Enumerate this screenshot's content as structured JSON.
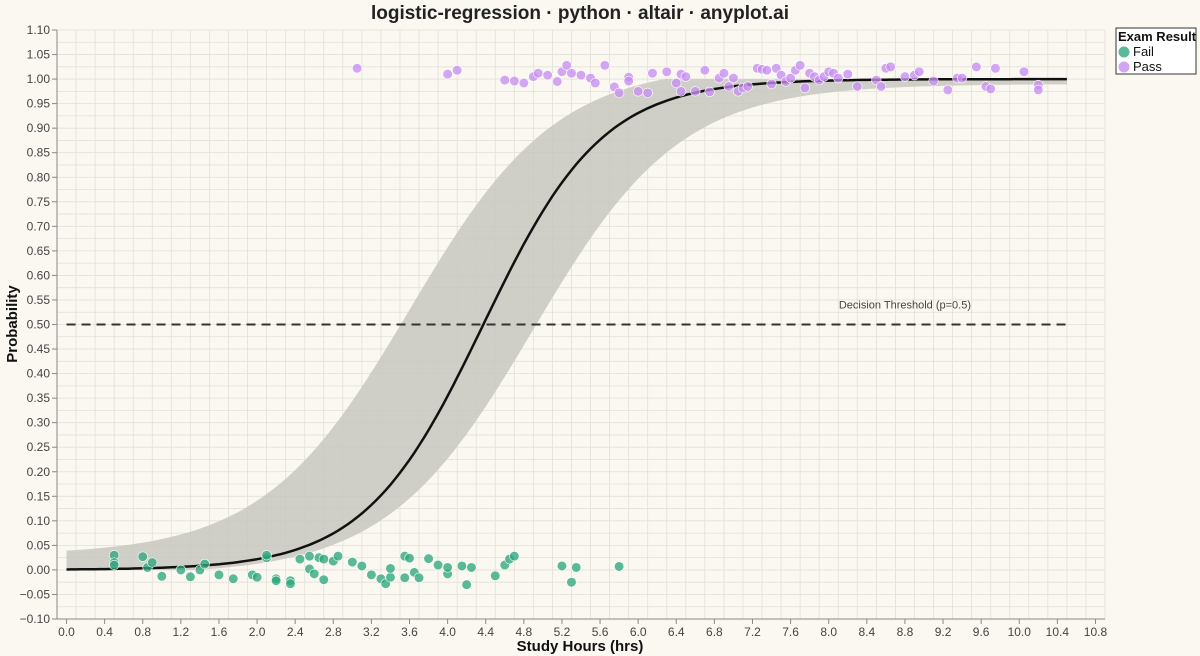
{
  "colors": {
    "background": "#FAF8F1",
    "grid": "#E2E0D8",
    "fail": "#2FA77E",
    "pass": "#C78EF0",
    "curve": "#111111",
    "band": "#C8C8C0"
  },
  "chart_data": {
    "type": "scatter",
    "title": "logistic-regression · python · altair · anyplot.ai",
    "xlabel": "Study Hours (hrs)",
    "ylabel": "Probability",
    "xlim": [
      -0.1,
      10.9
    ],
    "ylim": [
      -0.1,
      1.1
    ],
    "x_ticks": [
      "0.0",
      "0.4",
      "0.8",
      "1.2",
      "1.6",
      "2.0",
      "2.4",
      "2.8",
      "3.2",
      "3.6",
      "4.0",
      "4.4",
      "4.8",
      "5.2",
      "5.6",
      "6.0",
      "6.4",
      "6.8",
      "7.2",
      "7.6",
      "8.0",
      "8.4",
      "8.8",
      "9.2",
      "9.6",
      "10.0",
      "10.4",
      "10.8"
    ],
    "y_ticks": [
      "−0.10",
      "−0.05",
      "0.00",
      "0.05",
      "0.10",
      "0.15",
      "0.20",
      "0.25",
      "0.30",
      "0.35",
      "0.40",
      "0.45",
      "0.50",
      "0.55",
      "0.60",
      "0.65",
      "0.70",
      "0.75",
      "0.80",
      "0.85",
      "0.90",
      "0.95",
      "1.00",
      "1.05",
      "1.10"
    ],
    "grid": true,
    "legend": {
      "title": "Exam Result",
      "placement": "top-right",
      "entries": [
        {
          "label": "Fail",
          "color": "#2FA77E"
        },
        {
          "label": "Pass",
          "color": "#C78EF0"
        }
      ]
    },
    "threshold": {
      "y": 0.5,
      "label": "Decision Threshold (p=0.5)",
      "label_x": 8.8
    },
    "curve": {
      "intercept": -7.0,
      "slope": 1.6,
      "x_range": [
        0,
        10.5
      ]
    },
    "band": {
      "xlow": 0.0,
      "xhigh": 10.5,
      "k_upper": 1.3,
      "x0_upper": 3.6,
      "k_lower": 1.3,
      "x0_lower": 4.9,
      "upper_cap": 1.0,
      "lower_floor": 0.0
    },
    "series": [
      {
        "name": "Fail",
        "points": [
          [
            0.5,
            0.03
          ],
          [
            0.5,
            0.015
          ],
          [
            0.5,
            0.01
          ],
          [
            0.8,
            0.027
          ],
          [
            0.85,
            0.005
          ],
          [
            0.9,
            0.015
          ],
          [
            1.0,
            -0.013
          ],
          [
            1.2,
            0.0
          ],
          [
            1.3,
            -0.014
          ],
          [
            1.4,
            0.0
          ],
          [
            1.45,
            0.012
          ],
          [
            1.6,
            -0.01
          ],
          [
            1.75,
            -0.018
          ],
          [
            1.95,
            -0.01
          ],
          [
            2.0,
            -0.015
          ],
          [
            2.1,
            0.025
          ],
          [
            2.1,
            0.03
          ],
          [
            2.2,
            -0.018
          ],
          [
            2.2,
            -0.022
          ],
          [
            2.35,
            -0.022
          ],
          [
            2.35,
            -0.028
          ],
          [
            2.45,
            0.022
          ],
          [
            2.55,
            0.028
          ],
          [
            2.55,
            0.002
          ],
          [
            2.6,
            -0.008
          ],
          [
            2.65,
            0.025
          ],
          [
            2.7,
            0.022
          ],
          [
            2.7,
            -0.02
          ],
          [
            2.8,
            0.018
          ],
          [
            2.85,
            0.028
          ],
          [
            3.0,
            0.016
          ],
          [
            3.1,
            0.008
          ],
          [
            3.2,
            -0.01
          ],
          [
            3.3,
            -0.018
          ],
          [
            3.35,
            -0.028
          ],
          [
            3.4,
            -0.015
          ],
          [
            3.4,
            0.003
          ],
          [
            3.55,
            -0.016
          ],
          [
            3.55,
            0.028
          ],
          [
            3.6,
            0.024
          ],
          [
            3.65,
            -0.005
          ],
          [
            3.7,
            -0.016
          ],
          [
            3.8,
            0.023
          ],
          [
            3.9,
            0.01
          ],
          [
            4.0,
            -0.008
          ],
          [
            4.0,
            0.005
          ],
          [
            4.15,
            0.008
          ],
          [
            4.2,
            -0.03
          ],
          [
            4.25,
            0.005
          ],
          [
            4.5,
            -0.012
          ],
          [
            4.6,
            0.01
          ],
          [
            4.65,
            0.022
          ],
          [
            4.7,
            0.028
          ],
          [
            5.2,
            0.008
          ],
          [
            5.3,
            -0.025
          ],
          [
            5.35,
            0.005
          ],
          [
            5.8,
            0.007
          ]
        ]
      },
      {
        "name": "Pass",
        "points": [
          [
            3.05,
            1.022
          ],
          [
            4.0,
            1.01
          ],
          [
            4.1,
            1.018
          ],
          [
            4.6,
            0.998
          ],
          [
            4.7,
            0.996
          ],
          [
            4.8,
            0.992
          ],
          [
            4.9,
            1.005
          ],
          [
            4.95,
            1.012
          ],
          [
            5.05,
            1.008
          ],
          [
            5.15,
            0.995
          ],
          [
            5.2,
            1.015
          ],
          [
            5.25,
            1.028
          ],
          [
            5.3,
            1.012
          ],
          [
            5.4,
            1.008
          ],
          [
            5.5,
            1.002
          ],
          [
            5.55,
            0.992
          ],
          [
            5.65,
            1.028
          ],
          [
            5.75,
            0.984
          ],
          [
            5.8,
            0.972
          ],
          [
            5.9,
            1.004
          ],
          [
            5.9,
            0.996
          ],
          [
            6.0,
            0.975
          ],
          [
            6.1,
            0.972
          ],
          [
            6.15,
            1.012
          ],
          [
            6.3,
            1.015
          ],
          [
            6.4,
            0.992
          ],
          [
            6.45,
            1.01
          ],
          [
            6.45,
            0.975
          ],
          [
            6.5,
            1.005
          ],
          [
            6.6,
            0.975
          ],
          [
            6.7,
            1.018
          ],
          [
            6.75,
            0.974
          ],
          [
            6.85,
            1.002
          ],
          [
            6.9,
            1.012
          ],
          [
            6.95,
            0.985
          ],
          [
            7.0,
            1.002
          ],
          [
            7.05,
            0.975
          ],
          [
            7.1,
            0.982
          ],
          [
            7.15,
            0.985
          ],
          [
            7.25,
            1.022
          ],
          [
            7.3,
            1.02
          ],
          [
            7.35,
            1.018
          ],
          [
            7.4,
            0.99
          ],
          [
            7.45,
            1.022
          ],
          [
            7.5,
            1.008
          ],
          [
            7.55,
            0.995
          ],
          [
            7.6,
            1.002
          ],
          [
            7.65,
            1.018
          ],
          [
            7.7,
            1.028
          ],
          [
            7.75,
            0.982
          ],
          [
            7.8,
            1.012
          ],
          [
            7.85,
            1.005
          ],
          [
            7.9,
            0.998
          ],
          [
            7.95,
            1.005
          ],
          [
            8.0,
            1.015
          ],
          [
            8.05,
            1.012
          ],
          [
            8.1,
            1.002
          ],
          [
            8.2,
            1.01
          ],
          [
            8.3,
            0.985
          ],
          [
            8.5,
            0.998
          ],
          [
            8.55,
            0.985
          ],
          [
            8.6,
            1.022
          ],
          [
            8.65,
            1.025
          ],
          [
            8.8,
            1.005
          ],
          [
            8.9,
            1.008
          ],
          [
            8.95,
            1.015
          ],
          [
            9.1,
            0.996
          ],
          [
            9.25,
            0.978
          ],
          [
            9.35,
            1.002
          ],
          [
            9.4,
            1.002
          ],
          [
            9.55,
            1.025
          ],
          [
            9.65,
            0.985
          ],
          [
            9.7,
            0.98
          ],
          [
            9.75,
            1.022
          ],
          [
            10.05,
            1.015
          ],
          [
            10.2,
            0.988
          ],
          [
            10.2,
            0.978
          ]
        ]
      }
    ]
  }
}
